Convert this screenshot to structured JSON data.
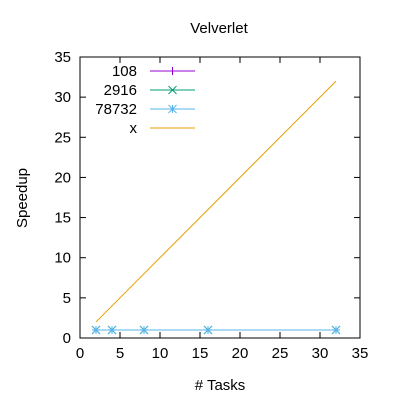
{
  "chart_data": {
    "type": "line",
    "title": "Velverlet",
    "xlabel": "# Tasks",
    "ylabel": "Speedup",
    "xlim": [
      0,
      35
    ],
    "ylim": [
      0,
      35
    ],
    "xticks": [
      0,
      5,
      10,
      15,
      20,
      25,
      30,
      35
    ],
    "yticks": [
      0,
      5,
      10,
      15,
      20,
      25,
      30,
      35
    ],
    "grid": false,
    "legend_position": "top-left",
    "series": [
      {
        "name": "108",
        "color": "#9400d3",
        "marker": "plus",
        "x": [
          2,
          4,
          8,
          16,
          32
        ],
        "y": [
          1,
          1,
          1,
          1,
          1
        ]
      },
      {
        "name": "2916",
        "color": "#009e73",
        "marker": "cross",
        "x": [
          2,
          4,
          8,
          16,
          32
        ],
        "y": [
          1,
          1,
          1,
          1,
          1
        ]
      },
      {
        "name": "78732",
        "color": "#56b4e9",
        "marker": "star",
        "x": [
          2,
          4,
          8,
          16,
          32
        ],
        "y": [
          1,
          1,
          1,
          1,
          1
        ]
      },
      {
        "name": "x",
        "color": "#e69f00",
        "marker": "none",
        "x": [
          2,
          32
        ],
        "y": [
          2,
          32
        ]
      }
    ]
  }
}
